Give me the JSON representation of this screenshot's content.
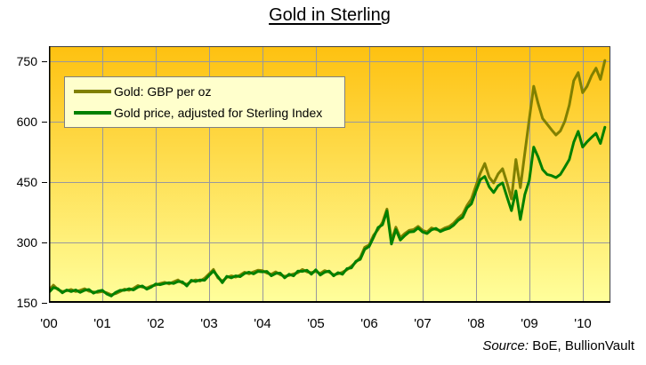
{
  "title": "Gold in Sterling",
  "source": {
    "prefix": "Source:",
    "text": " BoE, BullionVault"
  },
  "chart_data": {
    "type": "line",
    "title": "Gold in Sterling",
    "xlabel": "",
    "ylabel": "GBP per oz",
    "xlim": [
      2000,
      2010.52
    ],
    "ylim": [
      150,
      787.5
    ],
    "y_ticks": [
      150,
      300,
      450,
      600,
      750
    ],
    "x_ticks": [
      {
        "year": 2000,
        "label": "'00"
      },
      {
        "year": 2001,
        "label": "'01"
      },
      {
        "year": 2002,
        "label": "'02"
      },
      {
        "year": 2003,
        "label": "'03"
      },
      {
        "year": 2004,
        "label": "'04"
      },
      {
        "year": 2005,
        "label": "'05"
      },
      {
        "year": 2006,
        "label": "'06"
      },
      {
        "year": 2007,
        "label": "'07"
      },
      {
        "year": 2008,
        "label": "'08"
      },
      {
        "year": 2009,
        "label": "'09"
      },
      {
        "year": 2010,
        "label": "'10"
      }
    ],
    "grid": true,
    "gridline_color": "#98989e",
    "legend_position": "upper-left",
    "plot_background_gradient": [
      "#FEC110",
      "#FFFF9C"
    ],
    "x_start": 2000.0,
    "x_step": 0.0833,
    "x_unit": "monthly",
    "series": [
      {
        "id": "gold-gbp",
        "name": "Gold: GBP per oz",
        "color": "#808000",
        "values": [
          181,
          194,
          183,
          178,
          180,
          183,
          178,
          181,
          185,
          179,
          177,
          176,
          178,
          175,
          170,
          173,
          178,
          184,
          181,
          186,
          193,
          189,
          187,
          192,
          194,
          198,
          201,
          197,
          202,
          207,
          199,
          196,
          203,
          207,
          204,
          211,
          222,
          233,
          212,
          204,
          213,
          217,
          214,
          219,
          226,
          222,
          227,
          231,
          230,
          224,
          221,
          227,
          220,
          216,
          218,
          222,
          225,
          233,
          227,
          225,
          228,
          223,
          230,
          226,
          220,
          222,
          226,
          232,
          241,
          251,
          263,
          288,
          294,
          318,
          332,
          350,
          383,
          305,
          338,
          312,
          322,
          330,
          332,
          340,
          330,
          326,
          336,
          332,
          330,
          336,
          340,
          348,
          360,
          370,
          392,
          408,
          440,
          472,
          496,
          462,
          448,
          470,
          483,
          448,
          408,
          506,
          436,
          522,
          606,
          688,
          645,
          608,
          594,
          580,
          567,
          577,
          601,
          641,
          702,
          722,
          672,
          688,
          714,
          733,
          705,
          752
        ]
      },
      {
        "id": "gold-adjusted",
        "name": "Gold price, adjusted for Sterling Index",
        "color": "#008000",
        "values": [
          176,
          188,
          185,
          175,
          182,
          178,
          182,
          176,
          181,
          183,
          174,
          179,
          181,
          172,
          167,
          176,
          181,
          181,
          185,
          182,
          189,
          192,
          184,
          189,
          197,
          195,
          198,
          200,
          198,
          203,
          202,
          192,
          206,
          203,
          207,
          206,
          218,
          229,
          215,
          200,
          216,
          212,
          217,
          215,
          223,
          226,
          222,
          228,
          227,
          228,
          217,
          223,
          224,
          212,
          221,
          217,
          229,
          228,
          231,
          221,
          232,
          219,
          226,
          229,
          217,
          225,
          221,
          235,
          237,
          253,
          258,
          283,
          290,
          313,
          337,
          344,
          378,
          296,
          332,
          306,
          317,
          326,
          327,
          336,
          326,
          322,
          331,
          335,
          327,
          332,
          335,
          343,
          355,
          362,
          386,
          396,
          427,
          456,
          464,
          438,
          424,
          441,
          448,
          413,
          379,
          428,
          357,
          419,
          454,
          537,
          512,
          481,
          469,
          466,
          461,
          469,
          487,
          506,
          549,
          576,
          537,
          550,
          561,
          571,
          546,
          586
        ]
      }
    ]
  }
}
